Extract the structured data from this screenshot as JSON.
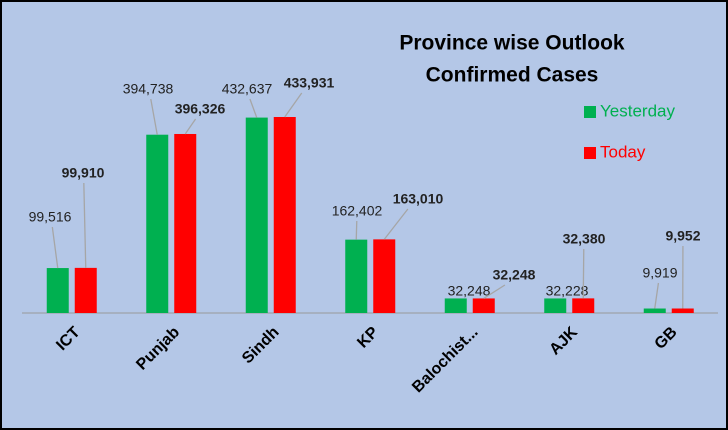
{
  "chart_data": {
    "type": "bar",
    "title": "Province wise Outlook",
    "subtitle": "Confirmed Cases",
    "categories": [
      "ICT",
      "Punjab",
      "Sindh",
      "KP",
      "Balochist...",
      "AJK",
      "GB"
    ],
    "series": [
      {
        "name": "Yesterday",
        "color": "#00b050",
        "values": [
          99516,
          394738,
          432637,
          162402,
          32248,
          32228,
          9919
        ],
        "value_labels": [
          "99,516",
          "394,738",
          "432,637",
          "162,402",
          "32,248",
          "32,228",
          "9,919"
        ]
      },
      {
        "name": "Today",
        "color": "#ff0000",
        "values": [
          99910,
          396326,
          433931,
          163010,
          32248,
          32380,
          9952
        ],
        "value_labels": [
          "99,910",
          "396,326",
          "433,931",
          "163,010",
          "32,248",
          "32,380",
          "9,952"
        ]
      }
    ],
    "legend": "right"
  }
}
